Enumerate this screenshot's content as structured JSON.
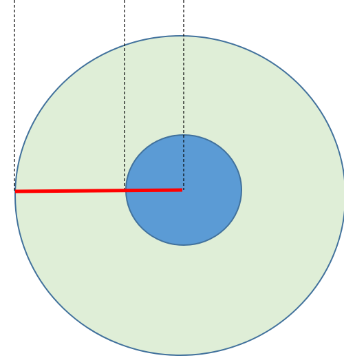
{
  "diagram": {
    "shapes": {
      "outer_circle": {
        "fill": "#dfeed7",
        "stroke": "#41719c"
      },
      "inner_circle": {
        "fill": "#5b9bd5",
        "stroke": "#41719c"
      }
    },
    "guide_lines": {
      "style": "dashed",
      "count": 3,
      "color": "#000000"
    },
    "radius_line": {
      "color": "#ff0000"
    }
  }
}
